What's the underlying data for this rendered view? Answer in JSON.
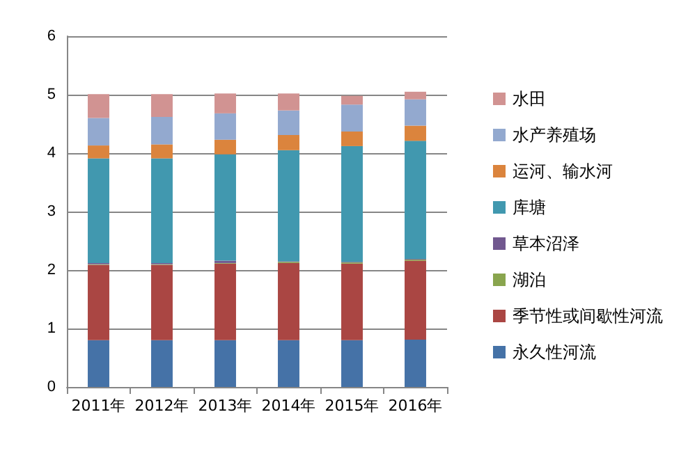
{
  "chart_data": {
    "type": "bar",
    "stacked": true,
    "categories": [
      "2011年",
      "2012年",
      "2013年",
      "2014年",
      "2015年",
      "2016年"
    ],
    "series": [
      {
        "name": "永久性河流",
        "color": "#4572a7",
        "values": [
          0.8,
          0.8,
          0.8,
          0.8,
          0.8,
          0.81
        ]
      },
      {
        "name": "季节性或间歇性河流",
        "color": "#aa4643",
        "values": [
          1.29,
          1.29,
          1.31,
          1.32,
          1.31,
          1.35
        ]
      },
      {
        "name": "湖泊",
        "color": "#89a54e",
        "values": [
          0.01,
          0.01,
          0.01,
          0.02,
          0.02,
          0.02
        ]
      },
      {
        "name": "草本沼泽",
        "color": "#71588f",
        "values": [
          0.02,
          0.02,
          0.04,
          0.01,
          0.01,
          0.01
        ]
      },
      {
        "name": "库塘",
        "color": "#4198af",
        "values": [
          1.79,
          1.79,
          1.82,
          1.9,
          1.98,
          2.02
        ]
      },
      {
        "name": "运河、输水河",
        "color": "#db843d",
        "values": [
          0.22,
          0.24,
          0.25,
          0.26,
          0.25,
          0.26
        ]
      },
      {
        "name": "水产养殖场",
        "color": "#93a9cf",
        "values": [
          0.47,
          0.47,
          0.45,
          0.42,
          0.46,
          0.45
        ]
      },
      {
        "name": "水田",
        "color": "#d19392",
        "values": [
          0.41,
          0.39,
          0.34,
          0.29,
          0.15,
          0.13
        ]
      }
    ],
    "ylim": [
      0,
      6
    ],
    "yticks": [
      0,
      1,
      2,
      3,
      4,
      5,
      6
    ],
    "grid": "y",
    "legend": "right"
  }
}
